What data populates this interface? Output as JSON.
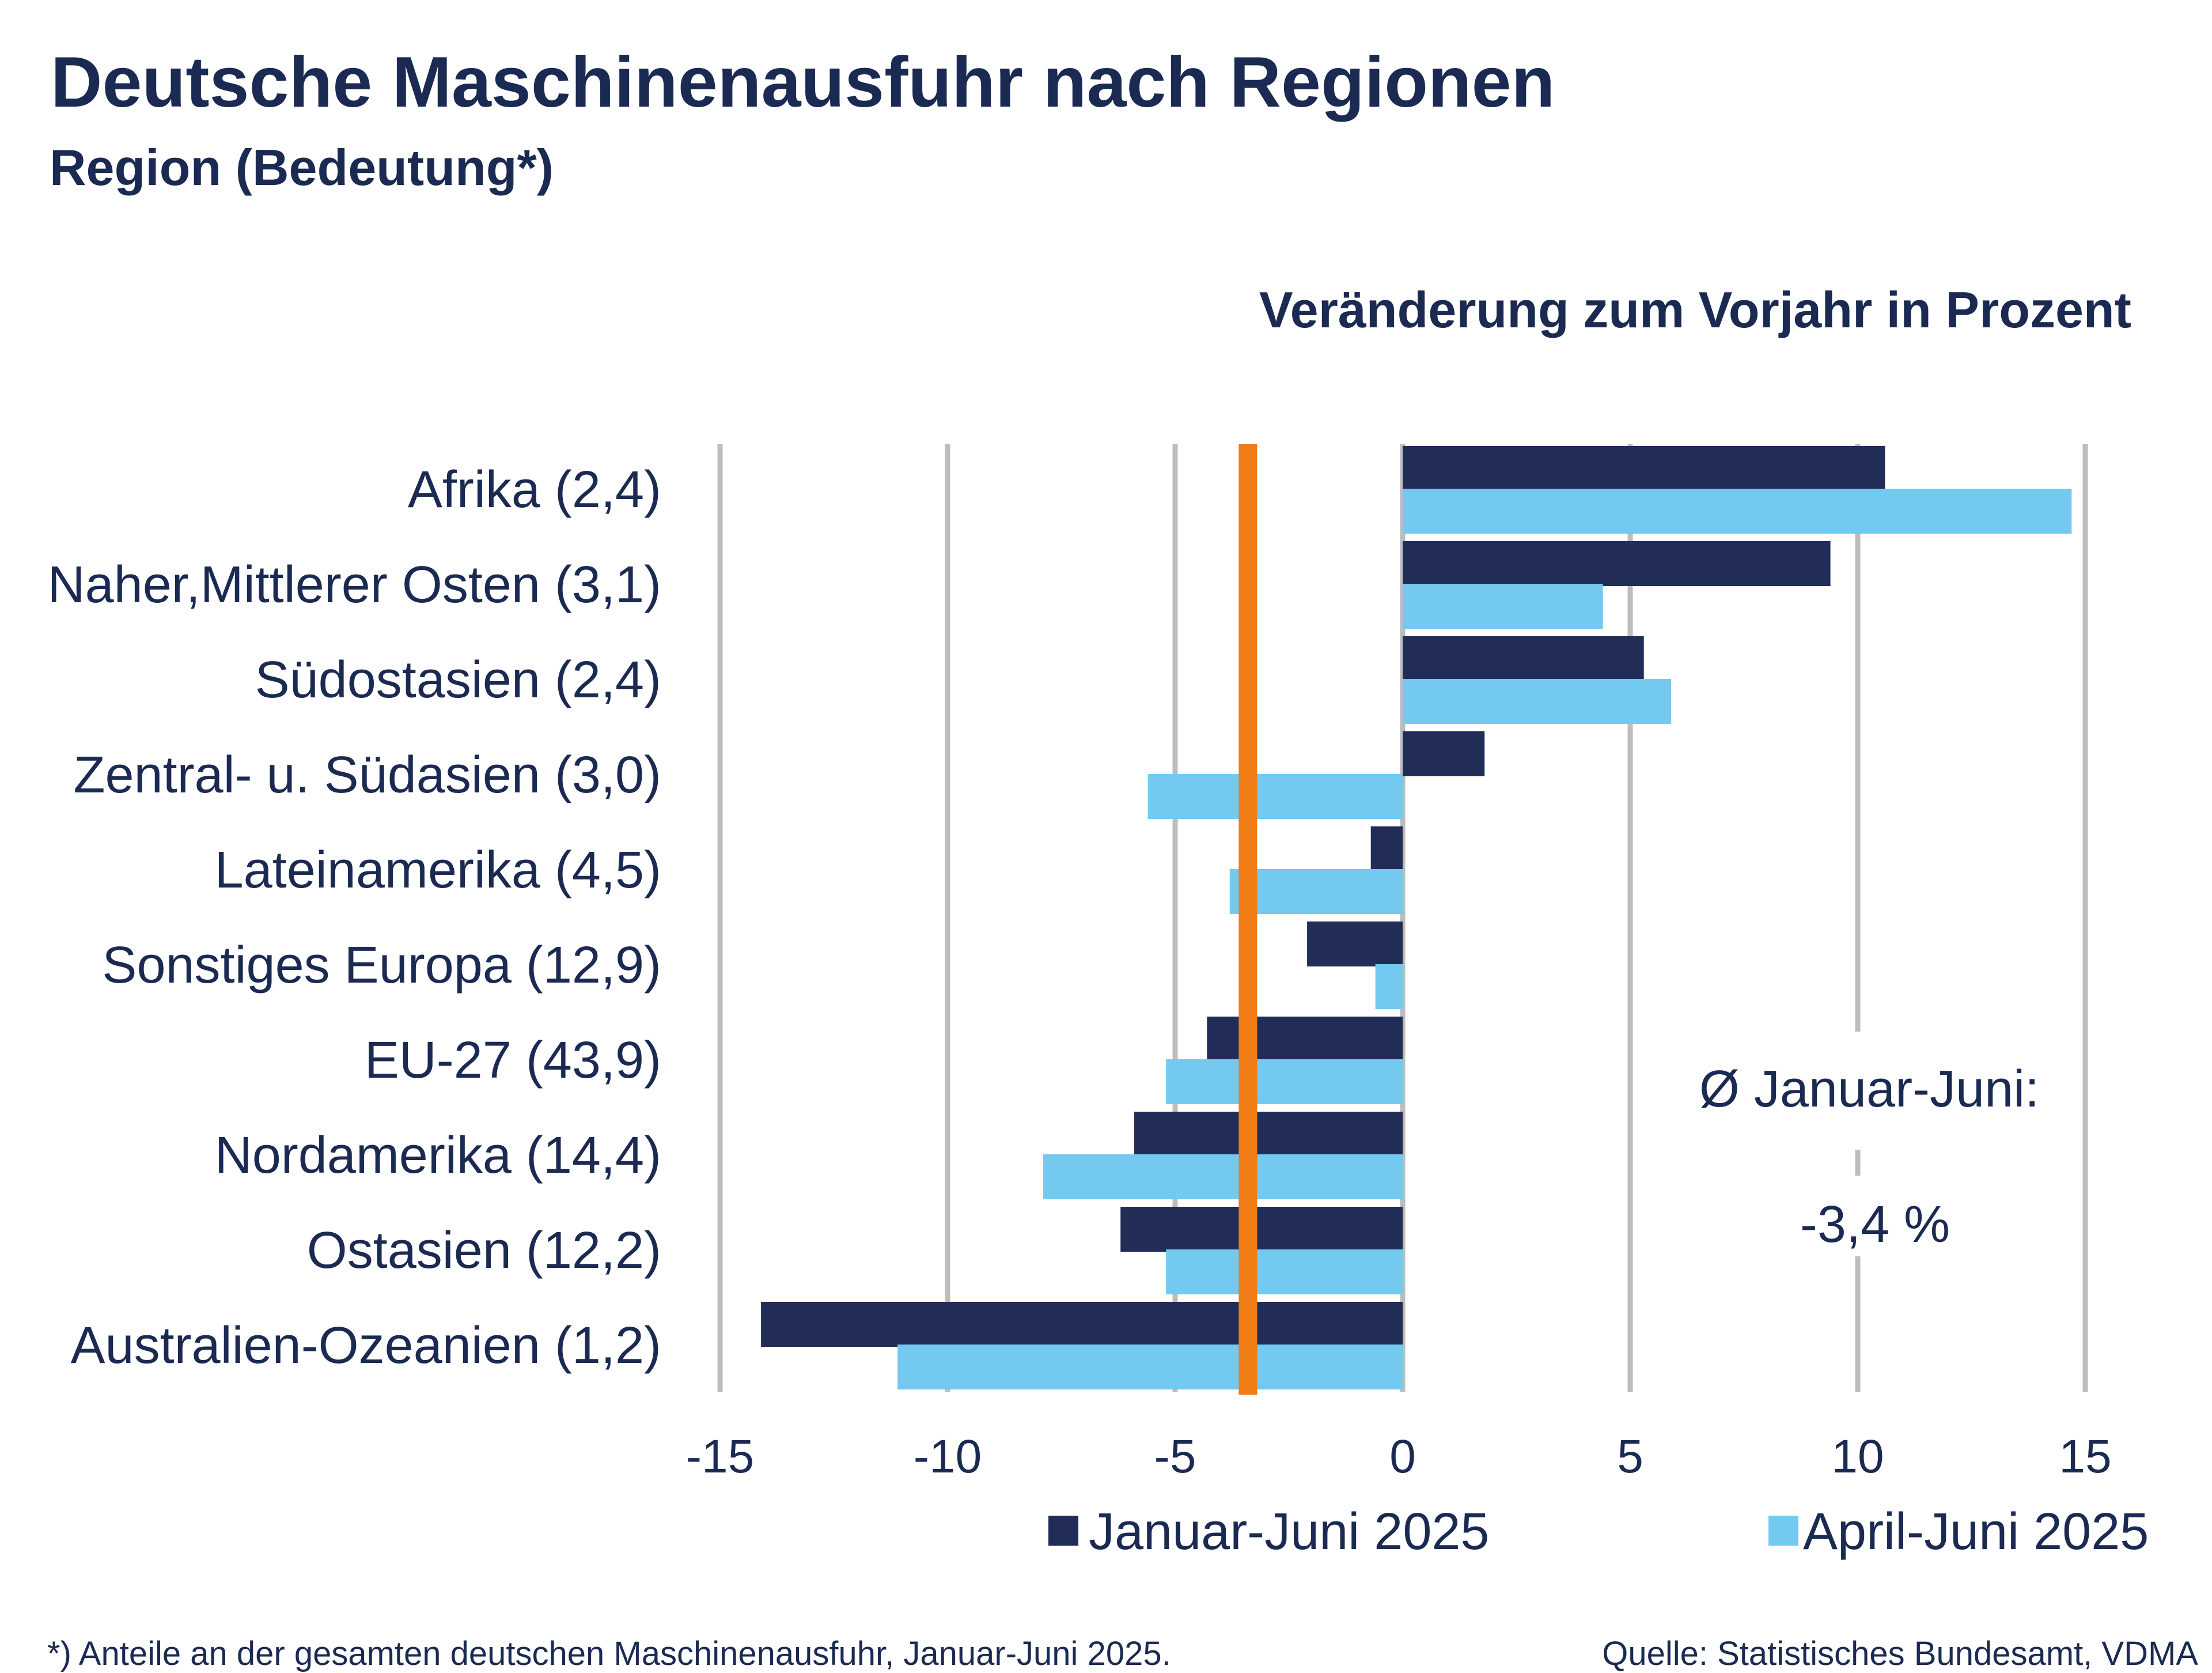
{
  "title": "Deutsche Maschinenausfuhr nach Regionen",
  "subtitle": "Region (Bedeutung*)",
  "chart_data": {
    "type": "bar",
    "orientation": "horizontal",
    "title": "Veränderung zum Vorjahr in Prozent",
    "categories": [
      "Afrika (2,4)",
      "Naher,Mittlerer Osten (3,1)",
      "Südostasien (2,4)",
      "Zentral- u. Südasien (3,0)",
      "Lateinamerika (4,5)",
      "Sonstiges Europa (12,9)",
      "EU-27 (43,9)",
      "Nordamerika (14,4)",
      "Ostasien (12,2)",
      "Australien-Ozeanien (1,2)"
    ],
    "series": [
      {
        "name": "Januar-Juni 2025",
        "color": "#212c57",
        "values": [
          10.6,
          9.4,
          5.3,
          1.8,
          -0.7,
          -2.1,
          -4.3,
          -5.9,
          -6.2,
          -14.1
        ]
      },
      {
        "name": "April-Juni 2025",
        "color": "#73c9f0",
        "values": [
          14.7,
          4.4,
          5.9,
          -5.6,
          -3.8,
          -0.6,
          -5.2,
          -7.9,
          -5.2,
          -11.1
        ]
      }
    ],
    "xlim": [
      -15,
      15
    ],
    "xticks": [
      -15,
      -10,
      -5,
      0,
      5,
      10,
      15
    ],
    "xtick_labels": [
      "-15",
      "-10",
      "-5",
      "0",
      "5",
      "10",
      "15"
    ],
    "grid": true,
    "reference_line": {
      "value": -3.4,
      "color": "#f07d16"
    },
    "annotation": {
      "line1": "Ø Januar-Juni:",
      "line2": "-3,4 %"
    },
    "legend_position": "bottom"
  },
  "footnote_left": "*) Anteile an der gesamten deutschen Maschinenausfuhr, Januar-Juni 2025.",
  "footnote_right": "Quelle: Statistisches Bundesamt, VDMA"
}
